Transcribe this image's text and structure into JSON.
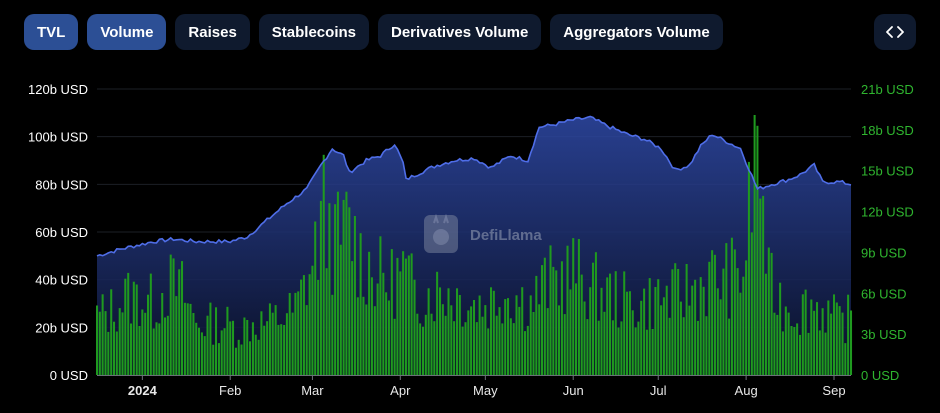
{
  "tabs": [
    {
      "label": "TVL",
      "active": true
    },
    {
      "label": "Volume",
      "active": true
    },
    {
      "label": "Raises",
      "active": false
    },
    {
      "label": "Stablecoins",
      "active": false
    },
    {
      "label": "Derivatives Volume",
      "active": false
    },
    {
      "label": "Aggregators Volume",
      "active": false
    }
  ],
  "embed_icon": "code-brackets-icon",
  "watermark": "DefiLlama",
  "colors": {
    "tvl_line": "#4f6ee8",
    "volume_bar": "#1f9a1f",
    "left_axis_text": "#ffffff",
    "right_axis_text": "#2fb52f",
    "tab_bg": "#0f1a2e",
    "tab_active_bg": "#2c4f95"
  },
  "chart_data": {
    "type": "line+bar",
    "x_range": [
      "2023-12-16",
      "2024-09-07"
    ],
    "x_ticks": [
      {
        "label": "2024",
        "date": "2024-01-01"
      },
      {
        "label": "Feb",
        "date": "2024-02-01"
      },
      {
        "label": "Mar",
        "date": "2024-03-01"
      },
      {
        "label": "Apr",
        "date": "2024-04-01"
      },
      {
        "label": "May",
        "date": "2024-05-01"
      },
      {
        "label": "Jun",
        "date": "2024-06-01"
      },
      {
        "label": "Jul",
        "date": "2024-07-01"
      },
      {
        "label": "Aug",
        "date": "2024-08-01"
      },
      {
        "label": "Sep",
        "date": "2024-09-01"
      }
    ],
    "left_axis": {
      "ticks": [
        "0 USD",
        "20b USD",
        "40b USD",
        "60b USD",
        "80b USD",
        "100b USD",
        "120b USD"
      ],
      "ylim": [
        0,
        120
      ]
    },
    "right_axis": {
      "ticks": [
        "0 USD",
        "3b USD",
        "6b USD",
        "9b USD",
        "12b USD",
        "15b USD",
        "18b USD",
        "21b USD"
      ],
      "ylim": [
        0,
        21
      ]
    },
    "grid": true,
    "tvl": [
      [
        "2023-12-16",
        50
      ],
      [
        "2023-12-25",
        53
      ],
      [
        "2024-01-05",
        56
      ],
      [
        "2024-01-12",
        57
      ],
      [
        "2024-01-20",
        56
      ],
      [
        "2024-02-01",
        56
      ],
      [
        "2024-02-07",
        58
      ],
      [
        "2024-02-14",
        65
      ],
      [
        "2024-02-21",
        72
      ],
      [
        "2024-02-28",
        78
      ],
      [
        "2024-03-04",
        88
      ],
      [
        "2024-03-08",
        95
      ],
      [
        "2024-03-12",
        92
      ],
      [
        "2024-03-14",
        85
      ],
      [
        "2024-03-20",
        90
      ],
      [
        "2024-03-25",
        92
      ],
      [
        "2024-03-30",
        97
      ],
      [
        "2024-04-02",
        89
      ],
      [
        "2024-04-03",
        82
      ],
      [
        "2024-04-10",
        86
      ],
      [
        "2024-04-14",
        88
      ],
      [
        "2024-04-20",
        90
      ],
      [
        "2024-04-27",
        91
      ],
      [
        "2024-05-03",
        87
      ],
      [
        "2024-05-10",
        92
      ],
      [
        "2024-05-16",
        90
      ],
      [
        "2024-05-20",
        104
      ],
      [
        "2024-05-25",
        105
      ],
      [
        "2024-06-01",
        107
      ],
      [
        "2024-06-07",
        108
      ],
      [
        "2024-06-14",
        104
      ],
      [
        "2024-06-20",
        101
      ],
      [
        "2024-06-26",
        99
      ],
      [
        "2024-07-02",
        95
      ],
      [
        "2024-07-07",
        86
      ],
      [
        "2024-07-12",
        88
      ],
      [
        "2024-07-16",
        96
      ],
      [
        "2024-07-20",
        101
      ],
      [
        "2024-07-25",
        98
      ],
      [
        "2024-07-30",
        95
      ],
      [
        "2024-08-05",
        78
      ],
      [
        "2024-08-10",
        80
      ],
      [
        "2024-08-16",
        82
      ],
      [
        "2024-08-20",
        84
      ],
      [
        "2024-08-25",
        88
      ],
      [
        "2024-08-28",
        81
      ],
      [
        "2024-09-03",
        81
      ],
      [
        "2024-09-07",
        80
      ]
    ],
    "volume": [
      [
        "2023-12-16",
        4.5
      ],
      [
        "2023-12-21",
        5.0
      ],
      [
        "2023-12-26",
        6.0
      ],
      [
        "2023-12-31",
        6.0
      ],
      [
        "2024-01-05",
        5.5
      ],
      [
        "2024-01-10",
        7.0
      ],
      [
        "2024-01-15",
        6.5
      ],
      [
        "2024-01-20",
        4.0
      ],
      [
        "2024-01-25",
        4.0
      ],
      [
        "2024-01-30",
        4.0
      ],
      [
        "2024-02-04",
        3.5
      ],
      [
        "2024-02-09",
        4.0
      ],
      [
        "2024-02-14",
        4.0
      ],
      [
        "2024-02-19",
        4.5
      ],
      [
        "2024-02-24",
        5.0
      ],
      [
        "2024-03-01",
        8.5
      ],
      [
        "2024-03-05",
        12.5
      ],
      [
        "2024-03-09",
        10.0
      ],
      [
        "2024-03-14",
        11.5
      ],
      [
        "2024-03-18",
        9.0
      ],
      [
        "2024-03-23",
        8.0
      ],
      [
        "2024-03-28",
        7.0
      ],
      [
        "2024-04-02",
        8.0
      ],
      [
        "2024-04-07",
        6.0
      ],
      [
        "2024-04-12",
        6.5
      ],
      [
        "2024-04-17",
        6.5
      ],
      [
        "2024-04-22",
        6.0
      ],
      [
        "2024-04-27",
        5.5
      ],
      [
        "2024-05-02",
        5.5
      ],
      [
        "2024-05-07",
        6.5
      ],
      [
        "2024-05-12",
        6.0
      ],
      [
        "2024-05-17",
        5.5
      ],
      [
        "2024-05-22",
        7.0
      ],
      [
        "2024-05-27",
        7.5
      ],
      [
        "2024-06-01",
        8.0
      ],
      [
        "2024-06-06",
        7.0
      ],
      [
        "2024-06-11",
        6.5
      ],
      [
        "2024-06-16",
        6.0
      ],
      [
        "2024-06-21",
        5.5
      ],
      [
        "2024-06-26",
        5.5
      ],
      [
        "2024-07-01",
        6.0
      ],
      [
        "2024-07-06",
        6.0
      ],
      [
        "2024-07-11",
        6.5
      ],
      [
        "2024-07-16",
        7.0
      ],
      [
        "2024-07-21",
        7.5
      ],
      [
        "2024-07-26",
        7.5
      ],
      [
        "2024-07-31",
        8.0
      ],
      [
        "2024-08-05",
        18.3
      ],
      [
        "2024-08-09",
        7.0
      ],
      [
        "2024-08-14",
        5.5
      ],
      [
        "2024-08-19",
        5.0
      ],
      [
        "2024-08-24",
        5.5
      ],
      [
        "2024-08-29",
        5.0
      ],
      [
        "2024-09-03",
        4.0
      ],
      [
        "2024-09-07",
        4.5
      ]
    ]
  }
}
